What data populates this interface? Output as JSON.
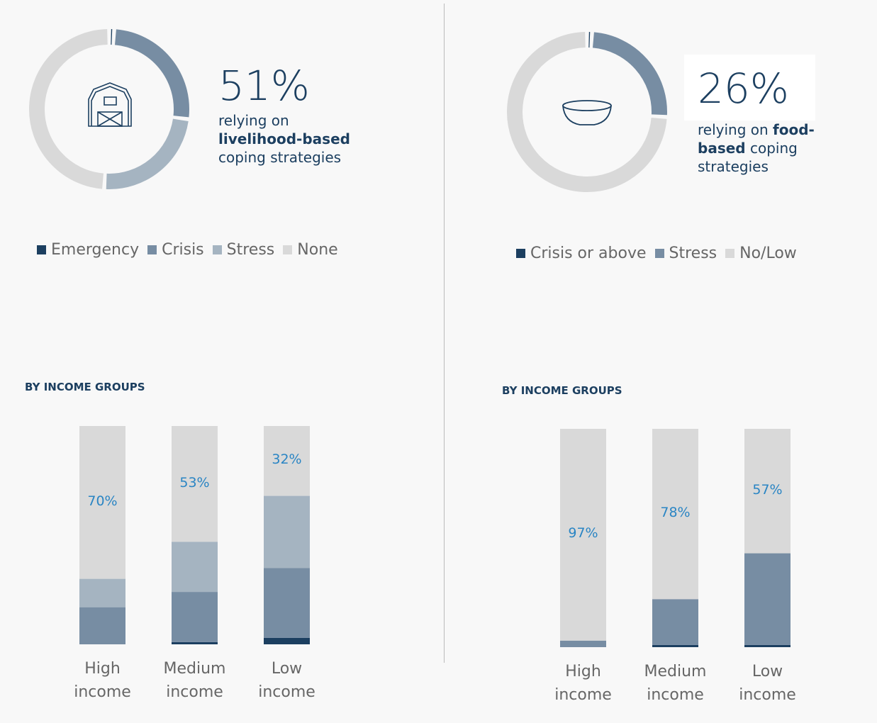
{
  "chart_data": [
    {
      "type": "donut",
      "headline": "51%",
      "caption": [
        "relying on",
        "livelihood-based",
        "coping strategies"
      ],
      "categories": [
        "Emergency",
        "Crisis",
        "Stress",
        "None"
      ],
      "values": [
        1,
        26,
        24,
        49
      ],
      "colors": [
        "#1c3f60",
        "#778da3",
        "#a5b4c1",
        "#d9d9d9"
      ]
    },
    {
      "type": "stacked-bar",
      "title": "BY INCOME GROUPS",
      "categories": [
        "High income",
        "Medium income",
        "Low income"
      ],
      "ylim": [
        0,
        100
      ],
      "series": [
        {
          "name": "Emergency",
          "color": "#1c3f60",
          "values": [
            0,
            1,
            3
          ]
        },
        {
          "name": "Crisis",
          "color": "#778da3",
          "values": [
            17,
            23,
            32
          ]
        },
        {
          "name": "Stress",
          "color": "#a5b4c1",
          "values": [
            13,
            23,
            33
          ]
        },
        {
          "name": "None",
          "color": "#d9d9d9",
          "values": [
            70,
            53,
            32
          ],
          "value_labels": [
            "70%",
            "53%",
            "32%"
          ]
        }
      ]
    },
    {
      "type": "donut",
      "headline": "26%",
      "caption": [
        "relying on",
        "food-based",
        "coping strategies"
      ],
      "categories": [
        "Crisis or above",
        "Stress",
        "No/Low"
      ],
      "values": [
        1,
        25,
        74
      ],
      "colors": [
        "#1c3f60",
        "#778da3",
        "#d9d9d9"
      ]
    },
    {
      "type": "stacked-bar",
      "title": "BY INCOME GROUPS",
      "categories": [
        "High income",
        "Medium income",
        "Low income"
      ],
      "ylim": [
        0,
        100
      ],
      "series": [
        {
          "name": "Crisis or above",
          "color": "#1c3f60",
          "values": [
            0,
            1,
            1
          ]
        },
        {
          "name": "Stress",
          "color": "#778da3",
          "values": [
            3,
            21,
            42
          ]
        },
        {
          "name": "No/Low",
          "color": "#d9d9d9",
          "values": [
            97,
            78,
            57
          ],
          "value_labels": [
            "97%",
            "78%",
            "57%"
          ]
        }
      ]
    }
  ]
}
